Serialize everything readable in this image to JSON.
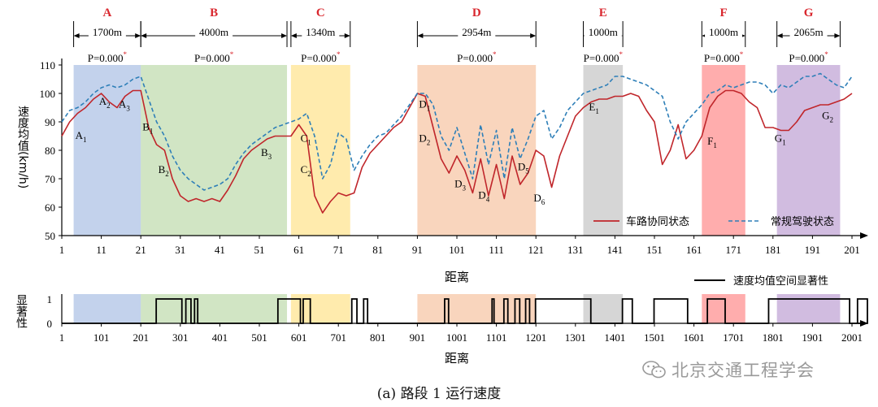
{
  "chart_data": [
    {
      "type": "line",
      "title": "",
      "ylabel": "速度均值(km/h)",
      "xlabel": "距离",
      "xlim": [
        1,
        201
      ],
      "ylim": [
        50,
        110
      ],
      "x_ticks": [
        1,
        11,
        21,
        31,
        41,
        51,
        61,
        71,
        81,
        91,
        101,
        111,
        121,
        131,
        141,
        151,
        161,
        171,
        181,
        191,
        201
      ],
      "y_ticks": [
        50,
        60,
        70,
        80,
        90,
        100,
        110
      ],
      "legend_position": "bottom-right",
      "grid": false,
      "series": [
        {
          "name": "车路协同状态",
          "style": "solid",
          "color": "#c0262b",
          "x": [
            1,
            3,
            5,
            7,
            9,
            11,
            13,
            15,
            17,
            19,
            21,
            23,
            25,
            27,
            29,
            31,
            33,
            35,
            37,
            39,
            41,
            43,
            45,
            47,
            49,
            51,
            53,
            55,
            57,
            59,
            61,
            63,
            65,
            67,
            69,
            71,
            73,
            75,
            77,
            79,
            81,
            83,
            85,
            87,
            89,
            91,
            93,
            95,
            97,
            99,
            101,
            103,
            105,
            107,
            109,
            111,
            113,
            115,
            117,
            119,
            121,
            123,
            125,
            127,
            129,
            131,
            133,
            135,
            137,
            139,
            141,
            143,
            145,
            147,
            149,
            151,
            153,
            155,
            157,
            159,
            161,
            163,
            165,
            167,
            169,
            171,
            173,
            175,
            177,
            179,
            181,
            183,
            185,
            187,
            189,
            191,
            193,
            195,
            197,
            199,
            201
          ],
          "values": [
            85,
            90,
            93,
            95,
            98,
            100,
            97,
            95,
            99,
            101,
            101,
            88,
            82,
            80,
            70,
            64,
            62,
            63,
            62,
            63,
            62,
            66,
            71,
            77,
            80,
            82,
            84,
            85,
            85,
            85,
            89,
            85,
            64,
            58,
            62,
            65,
            64,
            65,
            74,
            79,
            82,
            85,
            88,
            90,
            95,
            100,
            99,
            88,
            77,
            72,
            78,
            73,
            65,
            77,
            64,
            75,
            63,
            78,
            68,
            72,
            80,
            78,
            67,
            78,
            85,
            92,
            95,
            97,
            98,
            98,
            99,
            99,
            100,
            99,
            94,
            90,
            75,
            80,
            89,
            77,
            80,
            85,
            95,
            99,
            101,
            101,
            100,
            97,
            95,
            88,
            88,
            87,
            87,
            90,
            94,
            95,
            96,
            96,
            97,
            98,
            100
          ]
        },
        {
          "name": "常规驾驶状态",
          "style": "dashed",
          "color": "#2e7fb8",
          "x": [
            1,
            3,
            5,
            7,
            9,
            11,
            13,
            15,
            17,
            19,
            21,
            23,
            25,
            27,
            29,
            31,
            33,
            35,
            37,
            39,
            41,
            43,
            45,
            47,
            49,
            51,
            53,
            55,
            57,
            59,
            61,
            63,
            65,
            67,
            69,
            71,
            73,
            75,
            77,
            79,
            81,
            83,
            85,
            87,
            89,
            91,
            93,
            95,
            97,
            99,
            101,
            103,
            105,
            107,
            109,
            111,
            113,
            115,
            117,
            119,
            121,
            123,
            125,
            127,
            129,
            131,
            133,
            135,
            137,
            139,
            141,
            143,
            145,
            147,
            149,
            151,
            153,
            155,
            157,
            159,
            161,
            163,
            165,
            167,
            169,
            171,
            173,
            175,
            177,
            179,
            181,
            183,
            185,
            187,
            189,
            191,
            193,
            195,
            197,
            199,
            201
          ],
          "values": [
            90,
            94,
            95,
            97,
            100,
            102,
            103,
            102,
            103,
            105,
            106,
            98,
            90,
            85,
            78,
            73,
            70,
            68,
            66,
            67,
            68,
            70,
            75,
            79,
            82,
            84,
            86,
            88,
            89,
            90,
            91,
            93,
            85,
            70,
            75,
            86,
            84,
            73,
            78,
            82,
            85,
            86,
            89,
            92,
            96,
            100,
            100,
            96,
            85,
            80,
            88,
            79,
            70,
            89,
            75,
            87,
            70,
            88,
            77,
            84,
            92,
            94,
            84,
            88,
            94,
            97,
            100,
            101,
            102,
            103,
            106,
            106,
            105,
            104,
            103,
            101,
            99,
            90,
            84,
            90,
            93,
            96,
            100,
            101,
            103,
            102,
            103,
            104,
            104,
            103,
            100,
            103,
            102,
            104,
            106,
            106,
            107,
            105,
            103,
            102,
            106
          ]
        }
      ]
    },
    {
      "type": "line",
      "title": "",
      "ylabel": "显著性",
      "xlabel": "距离",
      "xlim": [
        1,
        2001
      ],
      "ylim": [
        0,
        1
      ],
      "x_ticks": [
        1,
        101,
        201,
        301,
        401,
        501,
        601,
        701,
        801,
        901,
        1001,
        1101,
        1201,
        1301,
        1401,
        1501,
        1601,
        1701,
        1801,
        1901,
        2001
      ],
      "y_ticks": [
        0,
        1
      ],
      "legend_position": "top-right",
      "series": [
        {
          "name": "速度均值空间显著性",
          "style": "step",
          "color": "#000000",
          "intervals_value_1": [
            [
              240,
              305
            ],
            [
              315,
              328
            ],
            [
              337,
              345
            ],
            [
              548,
              605
            ],
            [
              612,
              630
            ],
            [
              735,
              748
            ],
            [
              765,
              775
            ],
            [
              970,
              980
            ],
            [
              1090,
              1095
            ],
            [
              1120,
              1130
            ],
            [
              1148,
              1160
            ],
            [
              1175,
              1185
            ],
            [
              1200,
              1340
            ],
            [
              1420,
              1445
            ],
            [
              1500,
              1585
            ],
            [
              1635,
              1680
            ],
            [
              1790,
              1995
            ],
            [
              2015,
              2040
            ]
          ]
        }
      ]
    }
  ],
  "sections": [
    {
      "letter": "A",
      "distance": "1700m",
      "p_text": "P=0.000",
      "x_start": 4,
      "x_end": 21,
      "color": "#4472c4"
    },
    {
      "letter": "B",
      "distance": "4000m",
      "p_text": "P=0.000",
      "x_start": 21,
      "x_end": 58,
      "color": "#70ad47"
    },
    {
      "letter": "C",
      "distance": "1340m",
      "p_text": "P=0.000",
      "x_start": 59,
      "x_end": 74,
      "color": "#ffc000"
    },
    {
      "letter": "D",
      "distance": "2954m",
      "p_text": "P=0.000",
      "x_start": 91,
      "x_end": 121,
      "color": "#ed7d31"
    },
    {
      "letter": "E",
      "distance": "1000m",
      "p_text": "P=0.000",
      "x_start": 133,
      "x_end": 143,
      "color": "#7f7f7f"
    },
    {
      "letter": "F",
      "distance": "1000m",
      "p_text": "P=0.000",
      "x_start": 163,
      "x_end": 174,
      "color": "#ff0000"
    },
    {
      "letter": "G",
      "distance": "2065m",
      "p_text": "P=0.000",
      "x_start": 182,
      "x_end": 198,
      "color": "#7030a0"
    }
  ],
  "p_superscript": "*",
  "point_labels": [
    {
      "text": "A",
      "sub": "1",
      "x": 4,
      "y": 84
    },
    {
      "text": "A",
      "sub": "2",
      "x": 10,
      "y": 96
    },
    {
      "text": "A",
      "sub": "3",
      "x": 15,
      "y": 95
    },
    {
      "text": "B",
      "sub": "1",
      "x": 21,
      "y": 87
    },
    {
      "text": "B",
      "sub": "2",
      "x": 25,
      "y": 72
    },
    {
      "text": "B",
      "sub": "3",
      "x": 51,
      "y": 78
    },
    {
      "text": "C",
      "sub": "1",
      "x": 61,
      "y": 83
    },
    {
      "text": "C",
      "sub": "2",
      "x": 61,
      "y": 72
    },
    {
      "text": "D",
      "sub": "1",
      "x": 91,
      "y": 95
    },
    {
      "text": "D",
      "sub": "2",
      "x": 91,
      "y": 83
    },
    {
      "text": "D",
      "sub": "3",
      "x": 100,
      "y": 67
    },
    {
      "text": "D",
      "sub": "4",
      "x": 106,
      "y": 63
    },
    {
      "text": "D",
      "sub": "5",
      "x": 116,
      "y": 73
    },
    {
      "text": "D",
      "sub": "6",
      "x": 120,
      "y": 62
    },
    {
      "text": "E",
      "sub": "1",
      "x": 134,
      "y": 94
    },
    {
      "text": "F",
      "sub": "1",
      "x": 164,
      "y": 82
    },
    {
      "text": "G",
      "sub": "1",
      "x": 181,
      "y": 83
    },
    {
      "text": "G",
      "sub": "2",
      "x": 193,
      "y": 91
    }
  ],
  "caption": "(a)  路段 1 运行速度",
  "watermark": "北京交通工程学会"
}
